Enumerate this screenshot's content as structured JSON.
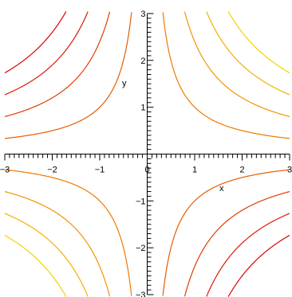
{
  "chart_data": {
    "type": "line",
    "plot_kind": "contour",
    "function": "x*y",
    "xlabel": "x",
    "ylabel": "y",
    "xlim": [
      -3,
      3
    ],
    "ylim": [
      -3,
      3
    ],
    "grid": false,
    "x_ticks": [
      {
        "value": -3,
        "label": "−3"
      },
      {
        "value": -2,
        "label": "−2"
      },
      {
        "value": -1,
        "label": "−1"
      },
      {
        "value": 0,
        "label": "0"
      },
      {
        "value": 1,
        "label": "1"
      },
      {
        "value": 2,
        "label": "2"
      },
      {
        "value": 3,
        "label": "3"
      }
    ],
    "y_ticks": [
      {
        "value": -3,
        "label": "−3"
      },
      {
        "value": -2,
        "label": "−2"
      },
      {
        "value": -1,
        "label": "−1"
      },
      {
        "value": 1,
        "label": "1"
      },
      {
        "value": 2,
        "label": "2"
      },
      {
        "value": 3,
        "label": "3"
      }
    ],
    "series": [
      {
        "level": -5.2,
        "color": "#dd0000"
      },
      {
        "level": -3.8,
        "color": "#e01800"
      },
      {
        "level": -2.4,
        "color": "#e43a00"
      },
      {
        "level": -1.0,
        "color": "#ea5a00"
      },
      {
        "level": 1.0,
        "color": "#f07800"
      },
      {
        "level": 2.4,
        "color": "#f29400"
      },
      {
        "level": 3.8,
        "color": "#f4b000"
      },
      {
        "level": 5.2,
        "color": "#f6d000"
      }
    ]
  }
}
